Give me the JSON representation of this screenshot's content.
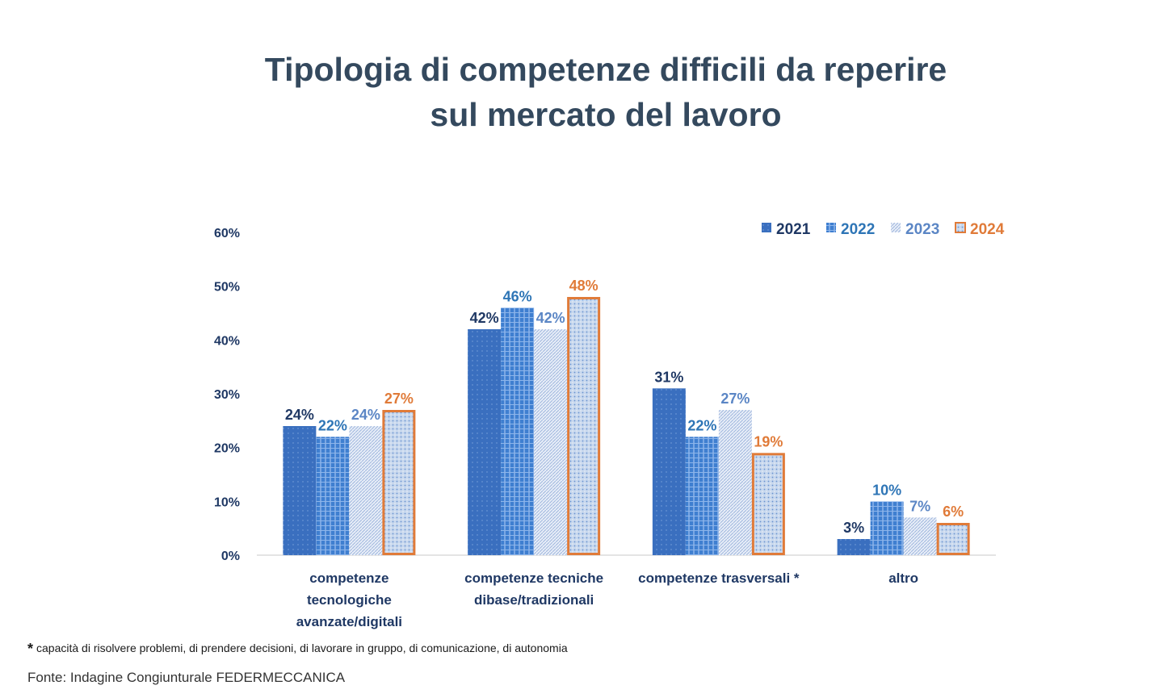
{
  "title_line1": "Tipologia di competenze difficili da reperire",
  "title_line2": "sul mercato del lavoro",
  "footnote_marker": "*",
  "footnote_text": "capacità di risolvere problemi, di prendere decisioni, di lavorare in gruppo, di comunicazione, di autonomia",
  "source": "Fonte: Indagine Congiunturale FEDERMECCANICA",
  "chart_data": {
    "type": "bar",
    "title": "Tipologia di competenze difficili da reperire sul mercato del lavoro",
    "categories": [
      [
        "competenze",
        "tecnologiche",
        "avanzate/digitali"
      ],
      [
        "competenze tecniche",
        "dibase/tradizionali"
      ],
      [
        "competenze trasversali *"
      ],
      [
        "altro"
      ]
    ],
    "series": [
      {
        "name": "2021",
        "values": [
          24,
          42,
          31,
          3
        ],
        "labels": [
          "24%",
          "42%",
          "31%",
          "3%"
        ],
        "color": "#3a6fbf",
        "label_color": "#1f3864"
      },
      {
        "name": "2022",
        "values": [
          22,
          46,
          22,
          10
        ],
        "labels": [
          "22%",
          "46%",
          "22%",
          "10%"
        ],
        "color": "#3f7fd0",
        "label_color": "#2e75b6"
      },
      {
        "name": "2023",
        "values": [
          24,
          42,
          27,
          7
        ],
        "labels": [
          "24%",
          "42%",
          "27%",
          "7%"
        ],
        "color": "#cfdcef",
        "label_color": "#5b86c5"
      },
      {
        "name": "2024",
        "values": [
          27,
          48,
          19,
          6
        ],
        "labels": [
          "27%",
          "48%",
          "19%",
          "6%"
        ],
        "color": "#c5d6ee",
        "label_color": "#e07b39",
        "border": "#e07b39"
      }
    ],
    "ylim": [
      0,
      60
    ],
    "yticks": [
      "0%",
      "10%",
      "20%",
      "30%",
      "40%",
      "50%",
      "60%"
    ],
    "ytick_values": [
      0,
      10,
      20,
      30,
      40,
      50,
      60
    ],
    "xlabel": "",
    "ylabel": "",
    "legend_position": "top-right",
    "grid": false
  }
}
